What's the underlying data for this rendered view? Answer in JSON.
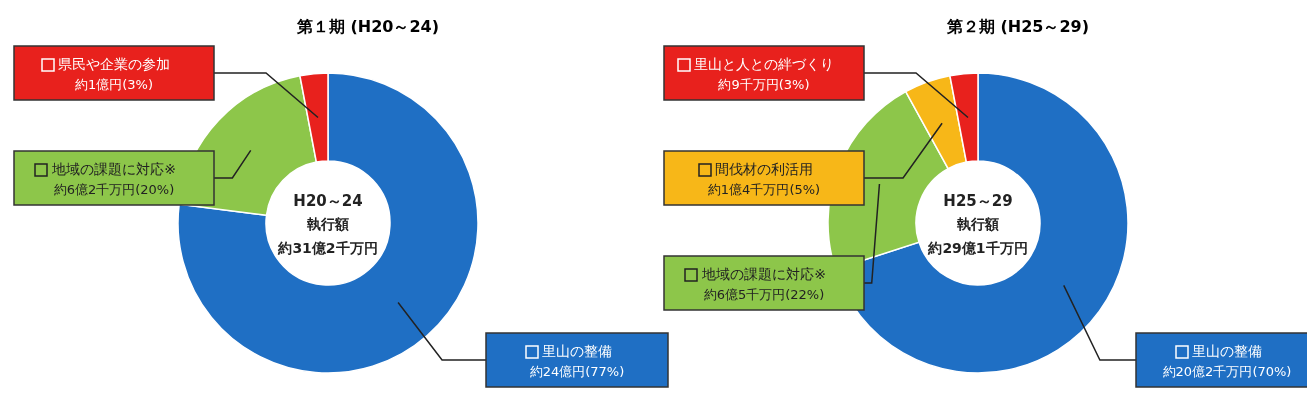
{
  "chart_data": [
    {
      "type": "donut",
      "title": "第１期 (H20～24)",
      "categories": [
        "里山の整備",
        "地域の課題に対応※",
        "県民や企業の参加"
      ],
      "values": [
        77,
        20,
        3
      ],
      "colors": [
        "#1f6fc4",
        "#8dc64a",
        "#e8211d"
      ],
      "value_labels": [
        "約24億円(77%)",
        "約6億2千万円(20%)",
        "約1億円(3%)"
      ],
      "annotations": [
        "H20～24",
        "執行額",
        "約31億2千万円"
      ],
      "legend": "left"
    },
    {
      "type": "donut",
      "title": "第２期 (H25～29)",
      "categories": [
        "里山の整備",
        "地域の課題に対応※",
        "間伐材の利活用",
        "里山と人との絆づくり"
      ],
      "values": [
        70,
        22,
        5,
        3
      ],
      "colors": [
        "#1f6fc4",
        "#8dc64a",
        "#f7b718",
        "#e8211d"
      ],
      "value_labels": [
        "約20億2千万円(70%)",
        "約6億5千万円(22%)",
        "約1億4千万円(5%)",
        "約9千万円(3%)"
      ],
      "annotations": [
        "H25～29",
        "執行額",
        "約29億1千万円"
      ],
      "legend": "left"
    }
  ]
}
